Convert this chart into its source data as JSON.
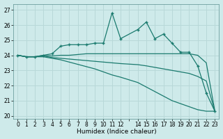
{
  "xlabel": "Humidex (Indice chaleur)",
  "xlim": [
    -0.5,
    23.5
  ],
  "ylim": [
    19.8,
    27.4
  ],
  "yticks": [
    20,
    21,
    22,
    23,
    24,
    25,
    26,
    27
  ],
  "xticks": [
    0,
    1,
    2,
    3,
    4,
    5,
    6,
    7,
    8,
    9,
    10,
    11,
    12,
    14,
    15,
    16,
    17,
    18,
    19,
    20,
    21,
    22,
    23
  ],
  "bg_color": "#ceeaea",
  "line_color": "#1a7a6e",
  "grid_color": "#b8d8d8",
  "lines": [
    {
      "x": [
        0,
        1,
        2,
        3,
        4,
        5,
        6,
        7,
        8,
        9,
        10,
        11,
        12,
        14,
        15,
        16,
        17,
        18,
        19,
        20,
        21,
        22,
        23
      ],
      "y": [
        24.0,
        23.9,
        23.9,
        24.0,
        24.1,
        24.6,
        24.7,
        24.7,
        24.7,
        24.8,
        24.8,
        26.8,
        25.1,
        25.7,
        26.2,
        25.1,
        25.4,
        24.8,
        24.2,
        24.2,
        23.3,
        21.5,
        20.3
      ],
      "marker": "+"
    },
    {
      "x": [
        0,
        1,
        2,
        3,
        4,
        5,
        6,
        7,
        8,
        9,
        10,
        11,
        12,
        14,
        15,
        16,
        17,
        18,
        19,
        20,
        21,
        22,
        23
      ],
      "y": [
        24.0,
        23.9,
        23.9,
        24.0,
        23.95,
        24.0,
        24.0,
        24.05,
        24.1,
        24.1,
        24.1,
        24.1,
        24.1,
        24.1,
        24.1,
        24.1,
        24.1,
        24.1,
        24.1,
        24.1,
        24.0,
        23.5,
        20.3
      ],
      "marker": null
    },
    {
      "x": [
        0,
        1,
        2,
        3,
        4,
        5,
        6,
        7,
        8,
        9,
        10,
        11,
        12,
        14,
        15,
        16,
        17,
        18,
        19,
        20,
        21,
        22,
        23
      ],
      "y": [
        24.0,
        23.9,
        23.9,
        23.95,
        23.85,
        23.8,
        23.75,
        23.7,
        23.65,
        23.6,
        23.55,
        23.5,
        23.45,
        23.38,
        23.3,
        23.2,
        23.1,
        23.0,
        22.9,
        22.8,
        22.6,
        22.3,
        20.3
      ],
      "marker": null
    },
    {
      "x": [
        0,
        1,
        2,
        3,
        4,
        5,
        6,
        7,
        8,
        9,
        10,
        11,
        12,
        14,
        15,
        16,
        17,
        18,
        19,
        20,
        21,
        22,
        23
      ],
      "y": [
        24.0,
        23.9,
        23.9,
        23.9,
        23.8,
        23.7,
        23.55,
        23.4,
        23.25,
        23.1,
        22.9,
        22.7,
        22.55,
        22.2,
        21.9,
        21.6,
        21.3,
        21.0,
        20.8,
        20.6,
        20.4,
        20.3,
        20.3
      ],
      "marker": null
    }
  ]
}
